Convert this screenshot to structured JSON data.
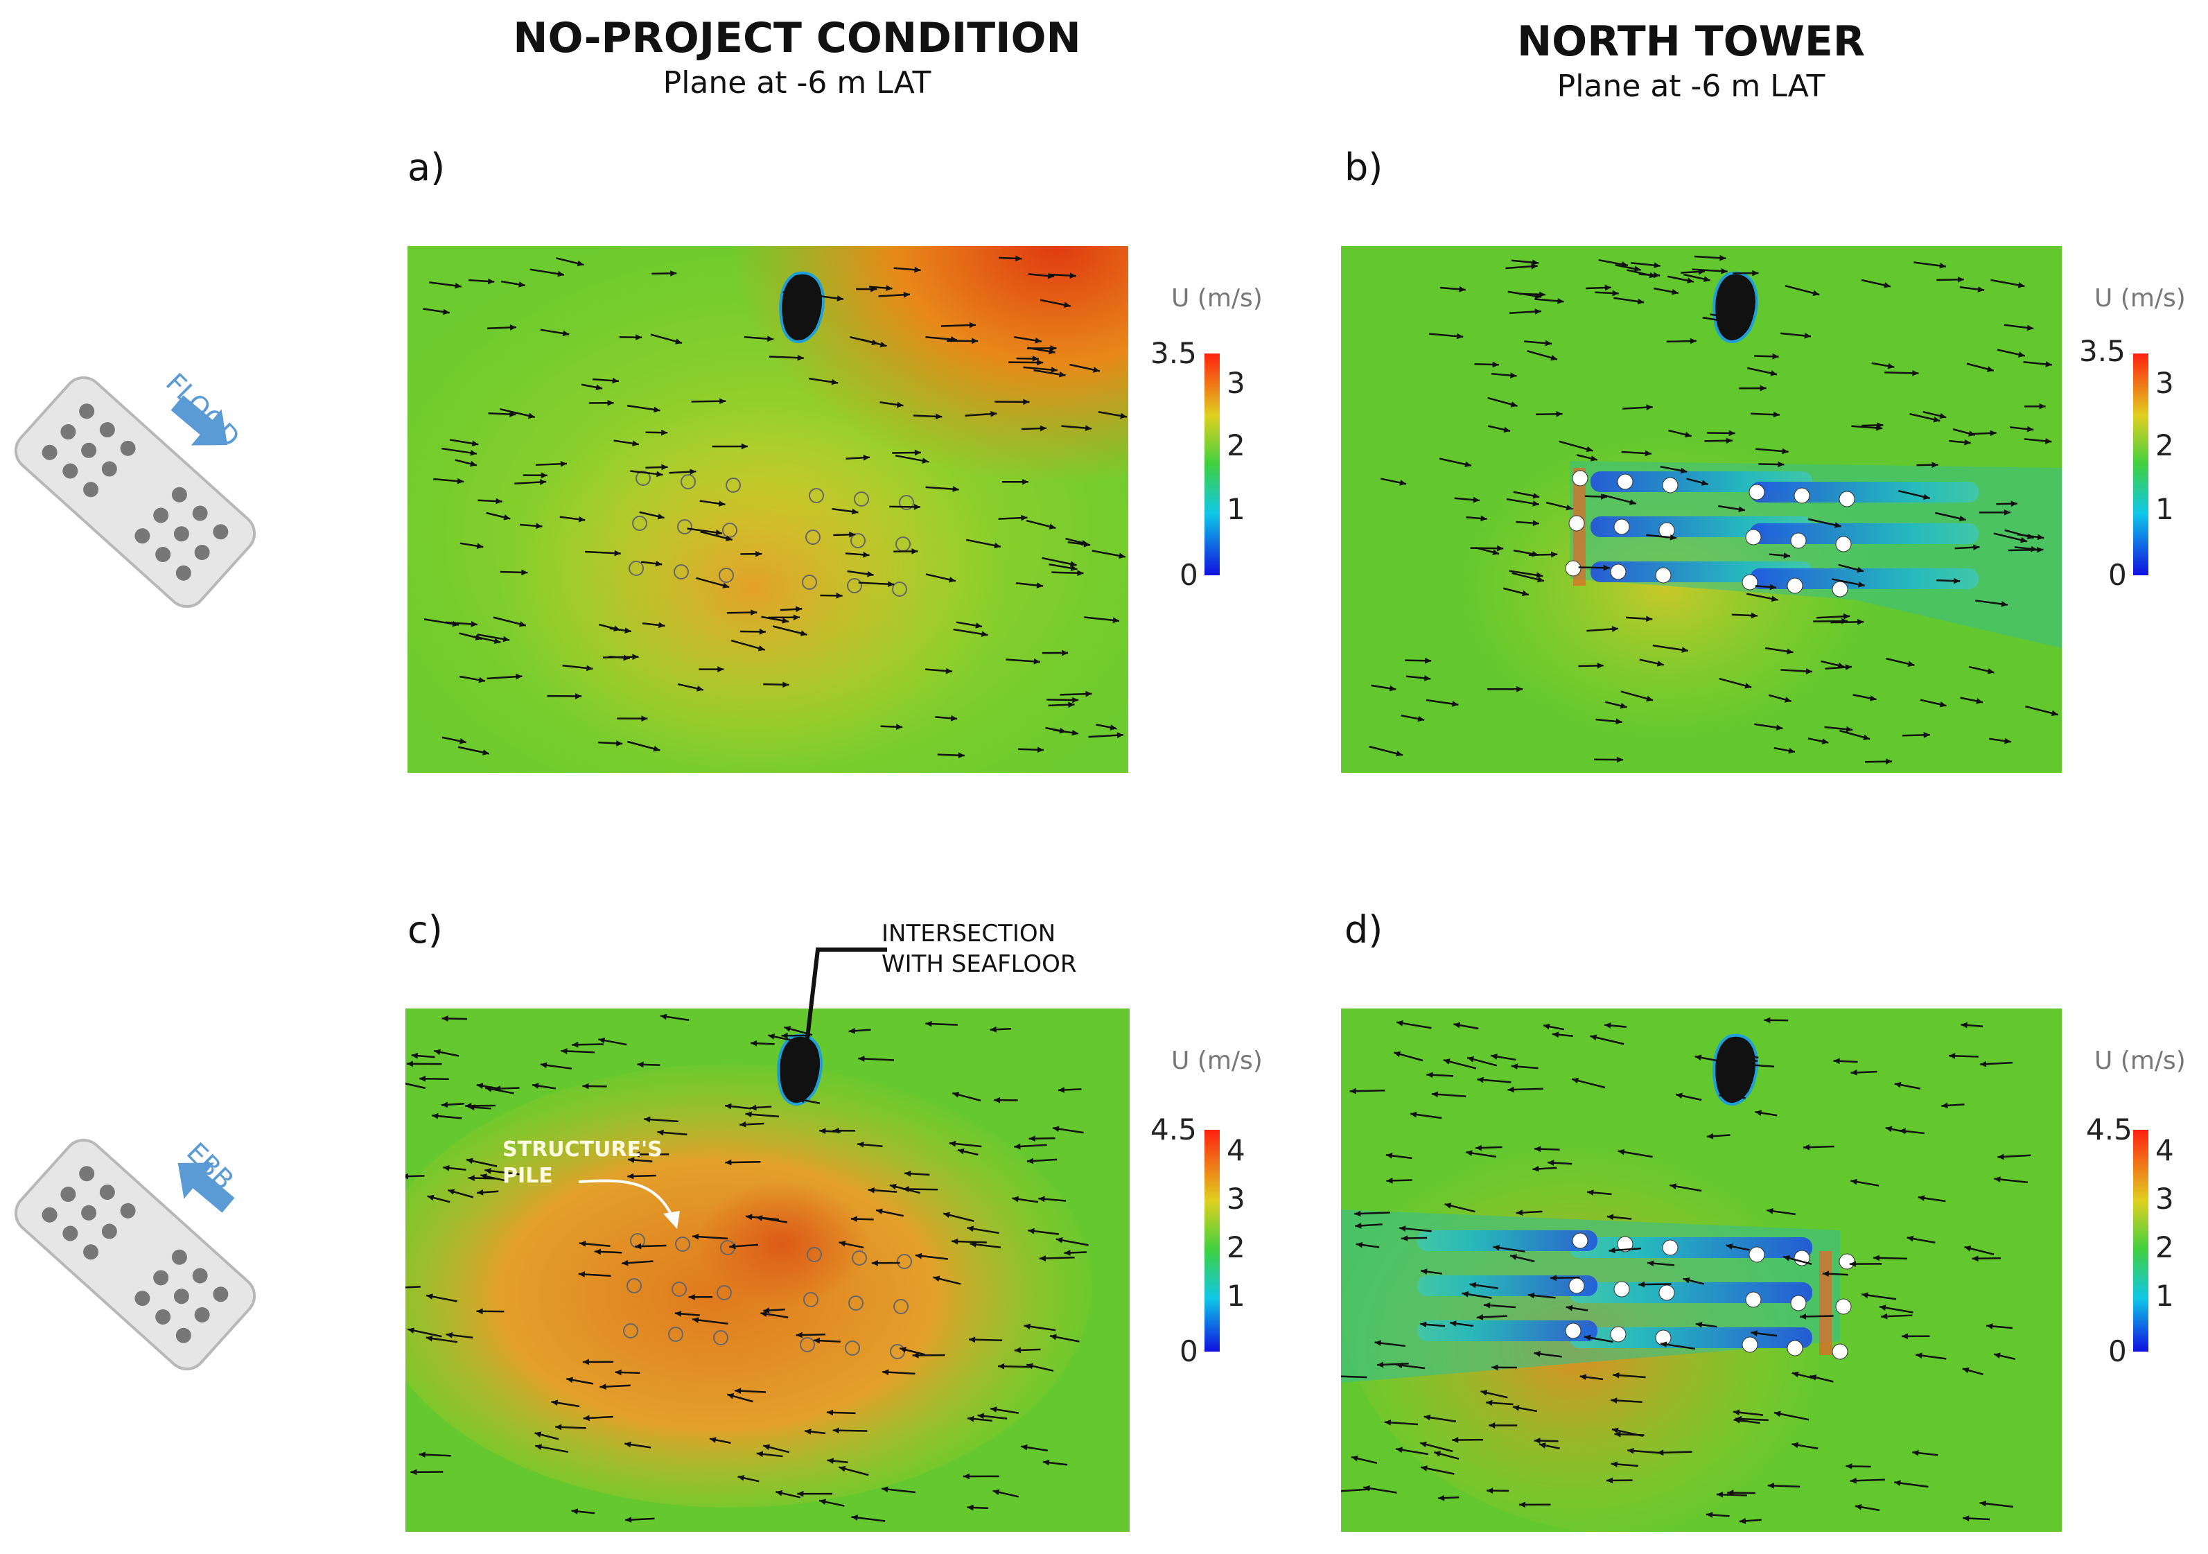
{
  "columns": [
    {
      "title": "NO-PROJECT CONDITION",
      "subtitle": "Plane at -6 m LAT"
    },
    {
      "title": "NORTH TOWER",
      "subtitle": "Plane at -6 m LAT"
    }
  ],
  "panels": [
    {
      "label": "a)",
      "scenario": "no-project",
      "tide": "flood"
    },
    {
      "label": "b)",
      "scenario": "north-tower",
      "tide": "flood"
    },
    {
      "label": "c)",
      "scenario": "no-project",
      "tide": "ebb"
    },
    {
      "label": "d)",
      "scenario": "north-tower",
      "tide": "ebb"
    }
  ],
  "colorbars": {
    "title": "U (m/s)",
    "flood": {
      "max_label": "3.5",
      "ticks": [
        "3",
        "2",
        "1",
        "0"
      ]
    },
    "ebb": {
      "max_label": "4.5",
      "ticks": [
        "4",
        "3",
        "2",
        "1",
        "0"
      ]
    }
  },
  "legends": {
    "flood_label": "FLOOD",
    "ebb_label": "EBB"
  },
  "annotations": {
    "seafloor_line1": "INTERSECTION",
    "seafloor_line2": "WITH SEAFLOOR",
    "pile_line1": "STRUCTURE'S",
    "pile_line2": "PILE"
  },
  "colors": {
    "field_green": "#5ec832",
    "field_yellow": "#c8d22a",
    "field_orange": "#e8a020",
    "wake_blue": "#1a3cd8",
    "legend_blue": "#5b9bd5",
    "arrow": "#111111"
  }
}
